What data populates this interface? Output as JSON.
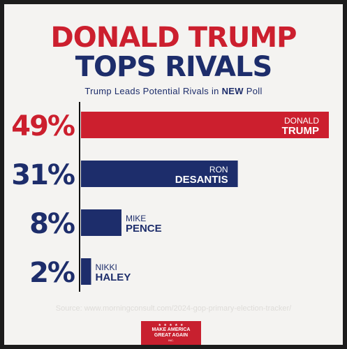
{
  "headline": {
    "line1": "DONALD TRUMP",
    "line2": "TOPS RIVALS"
  },
  "subtitle": {
    "prefix": "Trump Leads Potential Rivals in ",
    "emphasis": "NEW",
    "suffix": " Poll"
  },
  "colors": {
    "red": "#cc1f2e",
    "navy": "#1d2d6b",
    "background": "#f4f3f1"
  },
  "chart_data": {
    "type": "bar",
    "orientation": "horizontal",
    "categories": [
      "DONALD TRUMP",
      "RON DESANTIS",
      "MIKE PENCE",
      "NIKKI HALEY"
    ],
    "values": [
      49,
      31,
      8,
      2
    ],
    "value_labels": [
      "49%",
      "31%",
      "8%",
      "2%"
    ],
    "first_names": [
      "DONALD",
      "RON",
      "MIKE",
      "NIKKI"
    ],
    "last_names": [
      "TRUMP",
      "DESANTIS",
      "PENCE",
      "HALEY"
    ],
    "colors": [
      "#cc1f2e",
      "#1d2d6b",
      "#1d2d6b",
      "#1d2d6b"
    ],
    "xlim": [
      0,
      49
    ]
  },
  "source": "Source: www.morningconsult.com/2024-gop-primary-election-tracker/",
  "logo": {
    "stars": "★ ★ ★ ★ ★",
    "line1": "MAKE AMERICA",
    "line2": "GREAT AGAIN",
    "line3": "INC."
  }
}
